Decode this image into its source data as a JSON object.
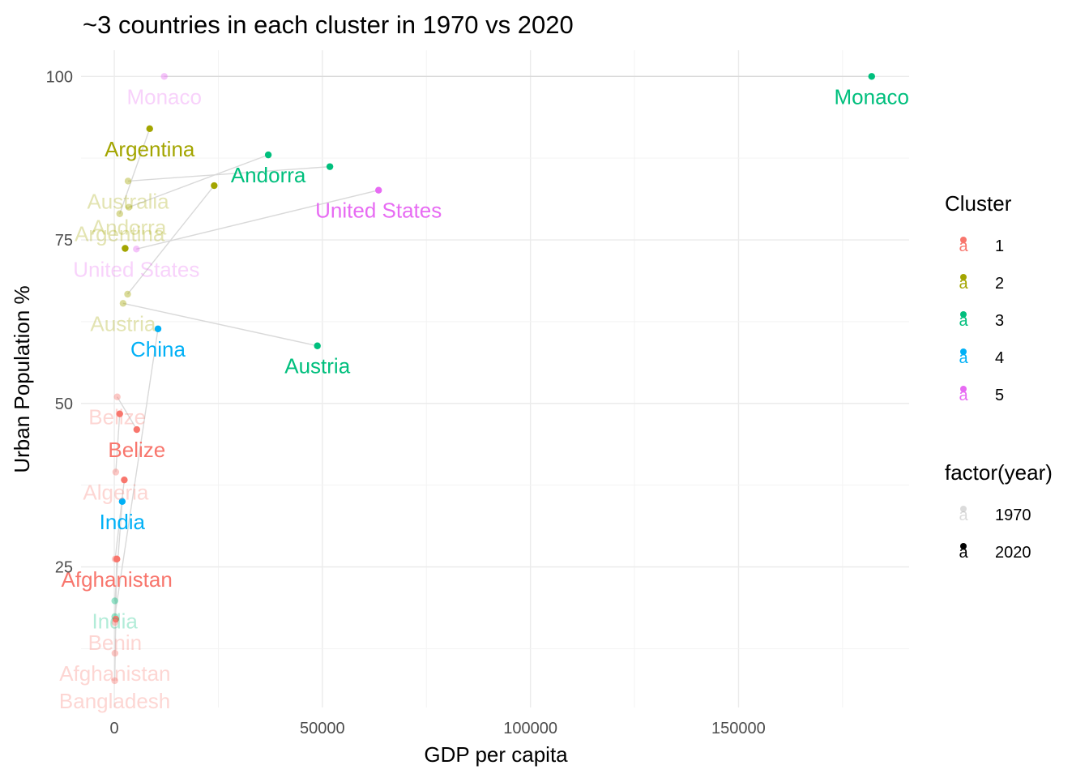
{
  "chart_data": {
    "type": "scatter",
    "title": "~3 countries in each cluster in 1970 vs 2020",
    "xlabel": "GDP per capita",
    "ylabel": "Urban Population %",
    "xlim": [
      -8000,
      191000
    ],
    "ylim": [
      3.5,
      104
    ],
    "x_ticks": [
      0,
      50000,
      100000,
      150000
    ],
    "x_tick_labels": [
      "0",
      "50000",
      "100000",
      "150000"
    ],
    "y_ticks": [
      25,
      50,
      75,
      100
    ],
    "y_tick_labels": [
      "25",
      "50",
      "75",
      "100"
    ],
    "grid": true,
    "legend_position": "right",
    "cluster_colors": {
      "1": "#F8766D",
      "2": "#A3A500",
      "3": "#00BF7D",
      "4": "#00B0F6",
      "5": "#E76BF3"
    },
    "legend": {
      "cluster": {
        "title": "Cluster",
        "items": [
          {
            "label": "1",
            "color": "#F8766D"
          },
          {
            "label": "2",
            "color": "#A3A500"
          },
          {
            "label": "3",
            "color": "#00BF7D"
          },
          {
            "label": "4",
            "color": "#00B0F6"
          },
          {
            "label": "5",
            "color": "#E76BF3"
          }
        ]
      },
      "year": {
        "title": "factor(year)",
        "items": [
          {
            "label": "1970",
            "color": "#999999",
            "alpha": 0.35
          },
          {
            "label": "2020",
            "color": "#000000",
            "alpha": 1
          }
        ]
      }
    },
    "series": [
      {
        "cluster": "3",
        "points": [
          {
            "year": 1970,
            "x": 12000,
            "y": 100,
            "cluster": "5",
            "label": "Monaco"
          },
          {
            "year": 2020,
            "x": 182000,
            "y": 100,
            "cluster": "3",
            "label": "Monaco"
          }
        ]
      },
      {
        "cluster": "2",
        "points": [
          {
            "year": 1970,
            "x": 1300,
            "y": 79,
            "cluster": "2",
            "label": "Argentina"
          },
          {
            "year": 2020,
            "x": 8500,
            "y": 92,
            "cluster": "2",
            "label": "Argentina"
          }
        ]
      },
      {
        "cluster": "3",
        "points": [
          {
            "year": 1970,
            "x": 3500,
            "y": 80,
            "cluster": "2",
            "label": "Andorra"
          },
          {
            "year": 2020,
            "x": 37000,
            "y": 88,
            "cluster": "3",
            "label": "Andorra"
          }
        ]
      },
      {
        "cluster": "3",
        "points": [
          {
            "year": 1970,
            "x": 3300,
            "y": 84,
            "cluster": "2",
            "label": "Australia"
          },
          {
            "year": 2020,
            "x": 51800,
            "y": 86.2,
            "cluster": "3",
            "label": ""
          }
        ]
      },
      {
        "cluster": "2",
        "points": [
          {
            "year": 1970,
            "x": 3200,
            "y": 66.7,
            "cluster": "2",
            "label": ""
          },
          {
            "year": 2020,
            "x": 24000,
            "y": 83.3,
            "cluster": "2",
            "label": ""
          }
        ]
      },
      {
        "cluster": "5",
        "points": [
          {
            "year": 1970,
            "x": 5300,
            "y": 73.6,
            "cluster": "5",
            "label": "United States"
          },
          {
            "year": 2020,
            "x": 63500,
            "y": 82.6,
            "cluster": "5",
            "label": "United States"
          }
        ]
      },
      {
        "cluster": "3",
        "points": [
          {
            "year": 1970,
            "x": 2100,
            "y": 65.3,
            "cluster": "2",
            "label": "Austria"
          },
          {
            "year": 2020,
            "x": 48800,
            "y": 58.8,
            "cluster": "3",
            "label": "Austria"
          }
        ]
      },
      {
        "cluster": "4",
        "points": [
          {
            "year": 1970,
            "x": 110,
            "y": 17.4,
            "cluster": "3",
            "label": ""
          },
          {
            "year": 2020,
            "x": 10500,
            "y": 61.4,
            "cluster": "4",
            "label": "China"
          }
        ]
      },
      {
        "cluster": "2",
        "points": [
          {
            "year": 1970,
            "x": 2600,
            "y": 73.7,
            "cluster": "2",
            "label": ""
          },
          {
            "year": 2020,
            "x": 2600,
            "y": 73.7,
            "cluster": "2",
            "label": ""
          }
        ]
      },
      {
        "cluster": "1",
        "points": [
          {
            "year": 1970,
            "x": 700,
            "y": 51,
            "cluster": "1",
            "label": "Belize"
          },
          {
            "year": 2020,
            "x": 5400,
            "y": 46,
            "cluster": "1",
            "label": "Belize"
          }
        ]
      },
      {
        "cluster": "1",
        "points": [
          {
            "year": 1970,
            "x": 350,
            "y": 39.5,
            "cluster": "1",
            "label": "Algeria"
          },
          {
            "year": 2020,
            "x": 1300,
            "y": 48.4,
            "cluster": "1",
            "label": ""
          }
        ]
      },
      {
        "cluster": "1",
        "points": [
          {
            "year": 1970,
            "x": 200,
            "y": 26.2,
            "cluster": "1",
            "label": ""
          },
          {
            "year": 2020,
            "x": 2400,
            "y": 38.3,
            "cluster": "1",
            "label": ""
          }
        ]
      },
      {
        "cluster": "4",
        "points": [
          {
            "year": 1970,
            "x": 120,
            "y": 19.8,
            "cluster": "3",
            "label": "India"
          },
          {
            "year": 2020,
            "x": 1900,
            "y": 35,
            "cluster": "4",
            "label": "India"
          }
        ]
      },
      {
        "cluster": "1",
        "points": [
          {
            "year": 1970,
            "x": 150,
            "y": 16.5,
            "cluster": "1",
            "label": "Benin"
          },
          {
            "year": 2020,
            "x": 600,
            "y": 26.2,
            "cluster": "1",
            "label": "Afghanistan"
          }
        ]
      },
      {
        "cluster": "1",
        "points": [
          {
            "year": 1970,
            "x": 150,
            "y": 11.8,
            "cluster": "1",
            "label": "Afghanistan"
          },
          {
            "year": 2020,
            "x": 600,
            "y": 26.2,
            "cluster": "1",
            "label": ""
          }
        ]
      },
      {
        "cluster": "1",
        "points": [
          {
            "year": 1970,
            "x": 100,
            "y": 7.6,
            "cluster": "1",
            "label": "Bangladesh"
          },
          {
            "year": 2020,
            "x": 350,
            "y": 17,
            "cluster": "1",
            "label": ""
          }
        ]
      }
    ]
  }
}
